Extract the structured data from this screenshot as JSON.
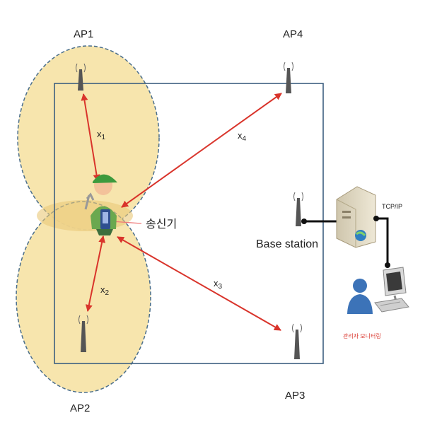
{
  "labels": {
    "ap1": "AP1",
    "ap2": "AP2",
    "ap3": "AP3",
    "ap4": "AP4",
    "x1": "x",
    "x1_sub": "1",
    "x2": "x",
    "x2_sub": "2",
    "x3": "x",
    "x3_sub": "3",
    "x4": "x",
    "x4_sub": "4",
    "transmitter": "송신기",
    "base_station": "Base station",
    "tcpip": "TCP/IP",
    "monitor": "관리자 모니터링"
  },
  "colors": {
    "coverage_fill": "#f6e2a4",
    "coverage_stroke": "#4a6e8c",
    "room_stroke": "#3d5f80",
    "arrow": "#d9342b",
    "link": "#111111"
  },
  "icons": [
    "antenna-icon",
    "worker-icon",
    "server-icon",
    "computer-icon",
    "user-icon"
  ]
}
